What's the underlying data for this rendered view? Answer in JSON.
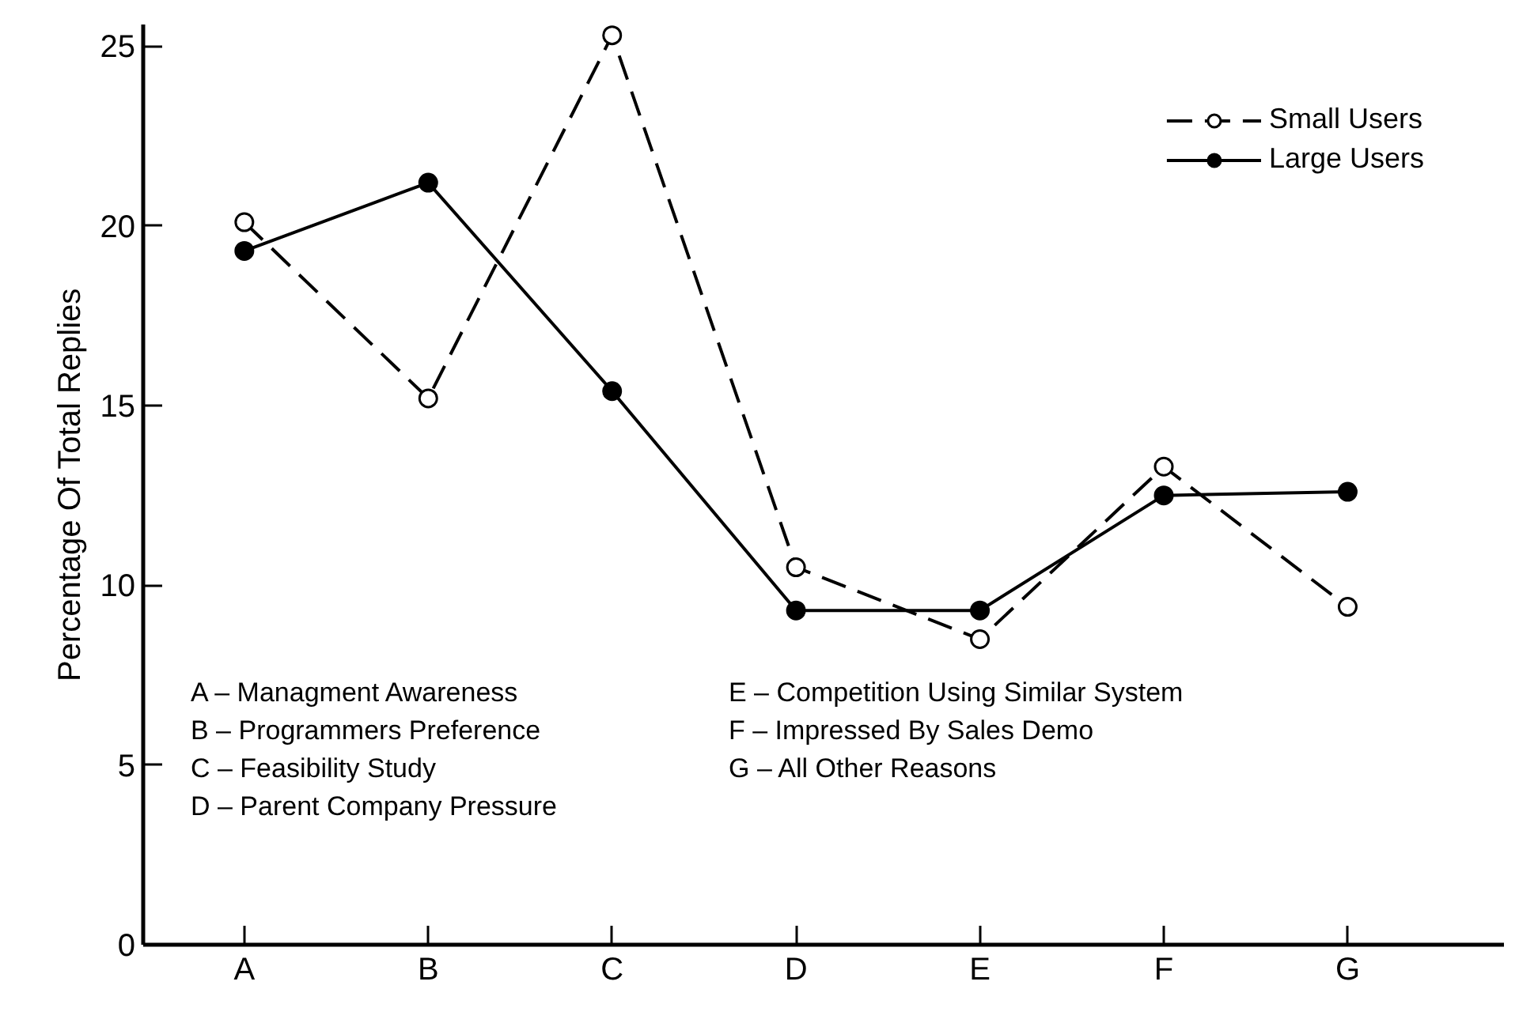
{
  "chart_data": {
    "type": "line",
    "ylabel": "Percentage Of Total Replies",
    "categories": [
      "A",
      "B",
      "C",
      "D",
      "E",
      "F",
      "G"
    ],
    "ylim": [
      0,
      25.6
    ],
    "yticks": [
      0,
      5,
      10,
      15,
      20,
      25
    ],
    "grid": false,
    "legend": "top right",
    "marker": "circle",
    "series": [
      {
        "name": "Small Users",
        "color": "#000000",
        "line_style": "dashed",
        "values": [
          20.1,
          15.2,
          25.3,
          10.5,
          8.5,
          13.3,
          9.4
        ]
      },
      {
        "name": "Large Users",
        "color": "#000000",
        "line_style": "solid",
        "values": [
          19.3,
          21.2,
          15.4,
          9.3,
          9.3,
          12.5,
          12.6
        ]
      }
    ],
    "annotations": [
      "A – Managment Awareness",
      "B – Programmers Preference",
      "C – Feasibility Study",
      "D – Parent Company Pressure",
      "E – Competition Using Similar System",
      "F – Impressed By Sales Demo",
      "G – All Other Reasons"
    ]
  }
}
